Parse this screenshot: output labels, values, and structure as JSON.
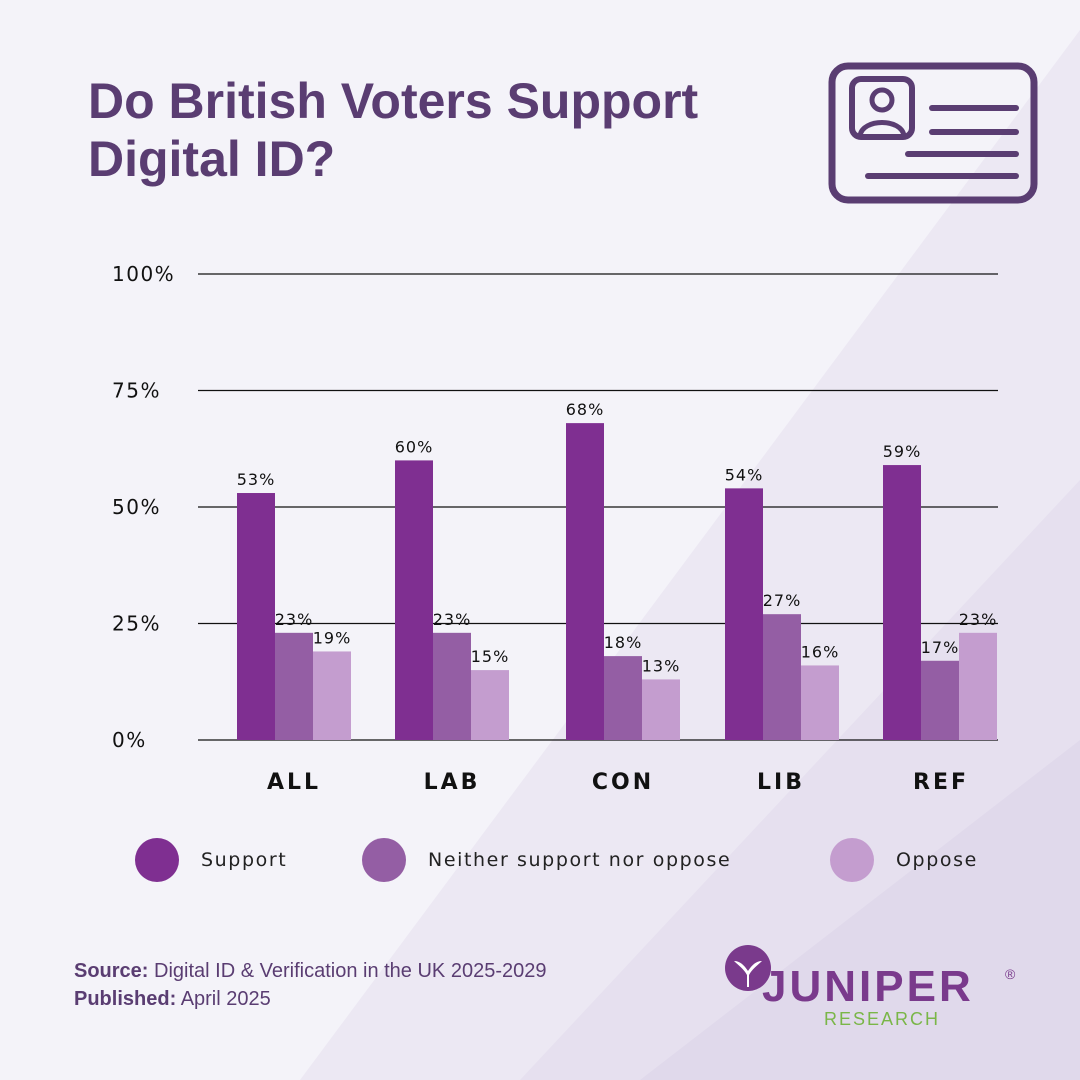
{
  "title": [
    "Do British Voters Support",
    "Digital ID?"
  ],
  "chart_data": {
    "type": "bar",
    "categories": [
      "ALL",
      "LAB",
      "CON",
      "LIB",
      "REF"
    ],
    "series": [
      {
        "name": "Support",
        "values": [
          53,
          60,
          68,
          54,
          59
        ],
        "color": "#7f2f91"
      },
      {
        "name": "Neither support nor oppose",
        "values": [
          23,
          23,
          18,
          27,
          17
        ],
        "color": "#945ea4"
      },
      {
        "name": "Oppose",
        "values": [
          19,
          15,
          13,
          16,
          23
        ],
        "color": "#c49dcf"
      }
    ],
    "data_labels": [
      [
        "53%",
        "60%",
        "68%",
        "54%",
        "59%"
      ],
      [
        "23%",
        "23%",
        "18%",
        "27%",
        "17%"
      ],
      [
        "19%",
        "15%",
        "13%",
        "16%",
        "23%"
      ]
    ],
    "y_ticks": [
      "0%",
      "25%",
      "50%",
      "75%",
      "100%"
    ],
    "ylim": [
      0,
      100
    ],
    "grid": true,
    "legend_position": "bottom"
  },
  "footer": {
    "source_label": "Source:",
    "source_text": "Digital ID & Verification in the UK 2025-2029",
    "published_label": "Published:",
    "published_text": "April 2025"
  },
  "logo": {
    "name": "JUNIPER",
    "sub": "RESEARCH",
    "mark": "®"
  },
  "icons": {
    "header": "digital-id-card-icon"
  },
  "colors": {
    "title": "#5a3d72",
    "support": "#7f2f91",
    "neither": "#945ea4",
    "oppose": "#c49dcf",
    "logo_green": "#7ab648"
  }
}
